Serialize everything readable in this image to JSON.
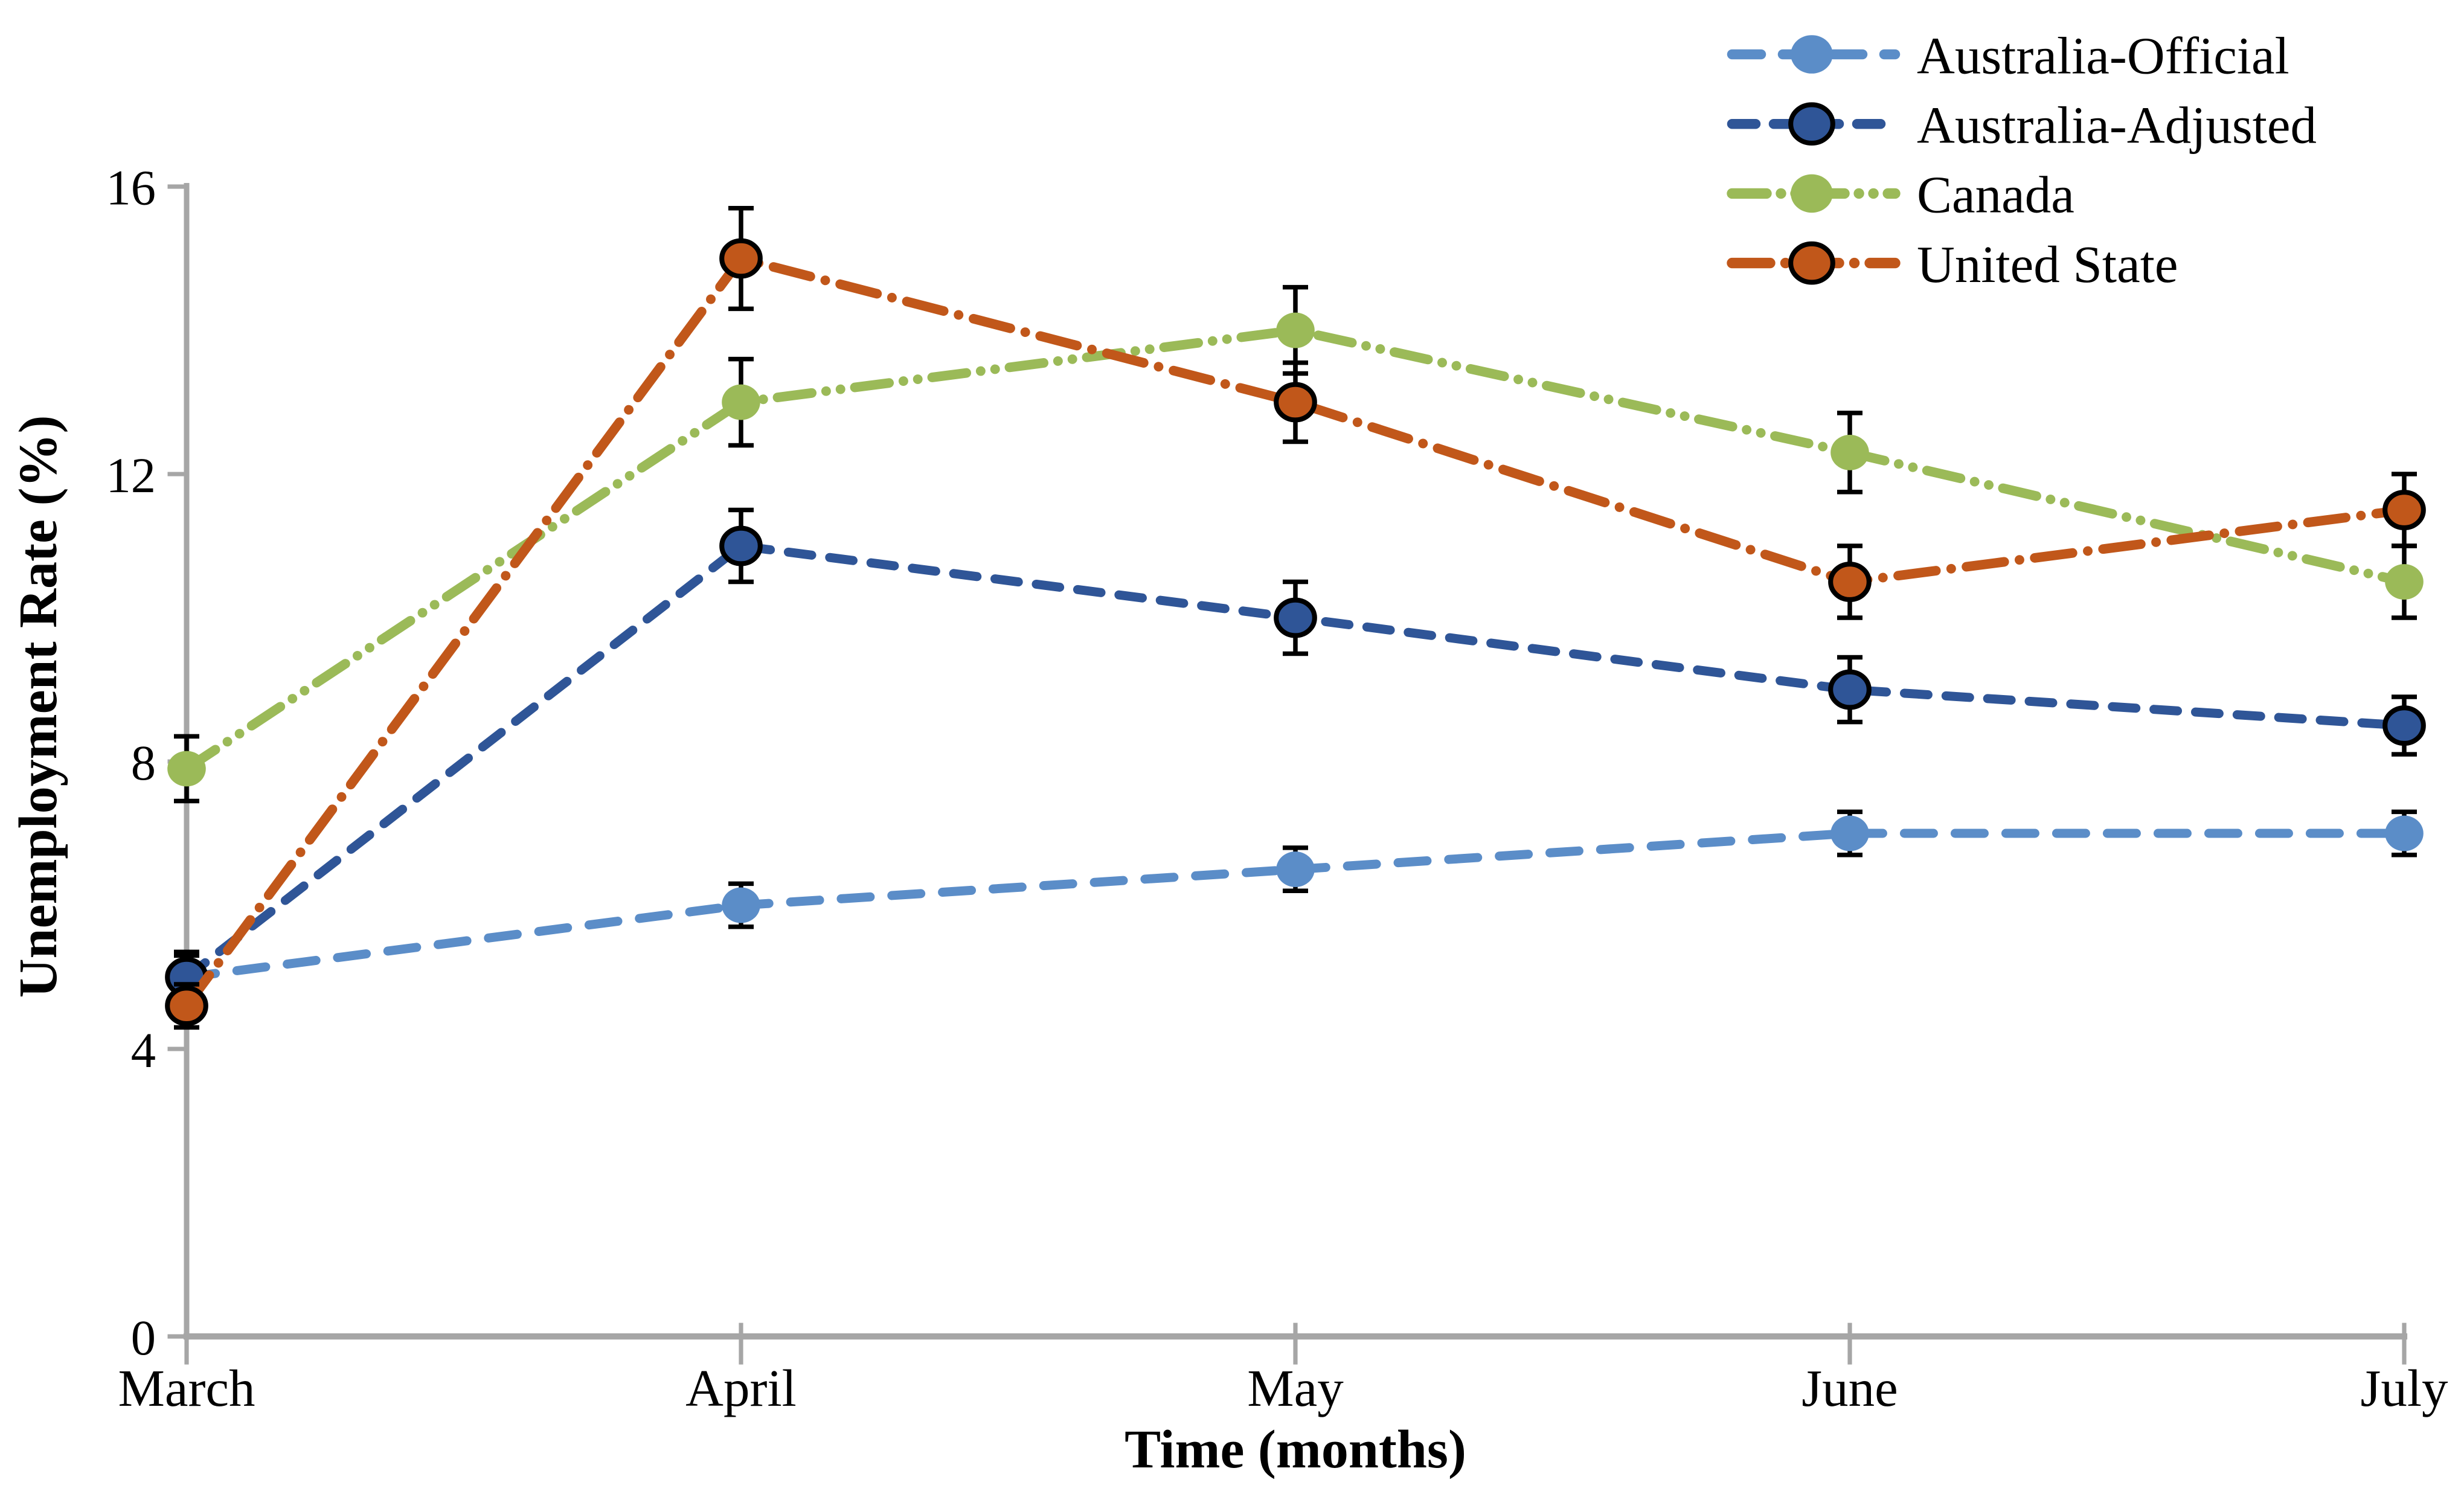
{
  "page": {
    "background_color": "#FFFFFF"
  },
  "chart_data": {
    "type": "line",
    "title": "",
    "xlabel": "Time (months)",
    "ylabel": "Unemployment Rate (%)",
    "categories": [
      "March",
      "April",
      "May",
      "June",
      "July"
    ],
    "yticks": [
      0,
      4,
      8,
      12,
      16
    ],
    "ylim": [
      0,
      16
    ],
    "grid": false,
    "legend_position": "top-right",
    "axis_color": "#A6A6A6",
    "error_bar_color": "#000000",
    "series": [
      {
        "name": "Australia-Official",
        "color": "#5B8DC8",
        "line_style": "long-dash",
        "marker": "circle",
        "marker_outline": "none",
        "values": [
          5.0,
          6.0,
          6.5,
          7.0,
          7.0
        ],
        "error_bars": [
          0.3,
          0.3,
          0.3,
          0.3,
          0.3
        ]
      },
      {
        "name": "Australia-Adjusted",
        "color": "#2F5597",
        "line_style": "dash",
        "marker": "circle",
        "marker_outline": "black",
        "values": [
          5.0,
          11.0,
          10.0,
          9.0,
          8.5
        ],
        "error_bars": [
          0.35,
          0.5,
          0.5,
          0.45,
          0.4
        ]
      },
      {
        "name": "Canada",
        "color": "#9BBA58",
        "line_style": "dash-dot-dot",
        "marker": "circle",
        "marker_outline": "none",
        "values": [
          7.9,
          13.0,
          14.0,
          12.3,
          10.5
        ],
        "error_bars": [
          0.45,
          0.6,
          0.6,
          0.55,
          0.5
        ]
      },
      {
        "name": "United State",
        "color": "#C1571A",
        "line_style": "dash-dot",
        "marker": "circle",
        "marker_outline": "black",
        "values": [
          4.6,
          15.0,
          13.0,
          10.5,
          11.5
        ],
        "error_bars": [
          0.3,
          0.7,
          0.55,
          0.5,
          0.5
        ]
      }
    ]
  }
}
